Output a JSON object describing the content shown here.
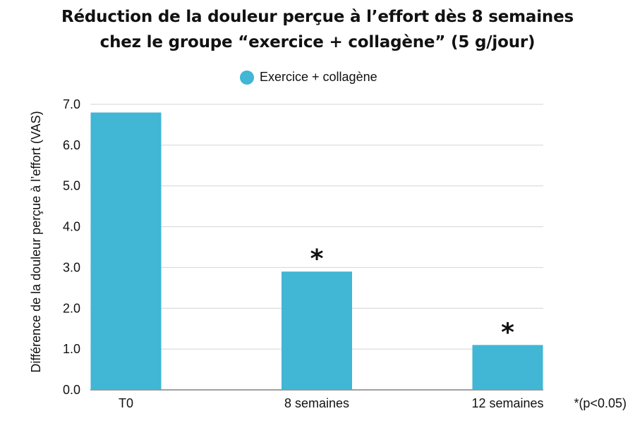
{
  "chart_data": {
    "type": "bar",
    "title_lines": [
      "Réduction de la douleur perçue à l’effort dès 8 semaines",
      "chez le groupe “exercice + collagène” (5 g/jour)"
    ],
    "xlabel": "",
    "ylabel": "Différence de la douleur perçue à l’effort (VAS)",
    "categories": [
      "T0",
      "8 semaines",
      "12 semaines"
    ],
    "series": [
      {
        "name": "Exercice + collagène",
        "values": [
          6.8,
          2.9,
          1.1
        ],
        "color": "#41b6d5"
      }
    ],
    "significance": [
      "",
      "*",
      "*"
    ],
    "ylim": [
      0,
      7
    ],
    "yticks": [
      "0.0",
      "1.0",
      "2.0",
      "3.0",
      "4.0",
      "5.0",
      "6.0",
      "7.0"
    ],
    "grid": true,
    "legend_position": "top",
    "footnote": "*(p<0.05)"
  }
}
